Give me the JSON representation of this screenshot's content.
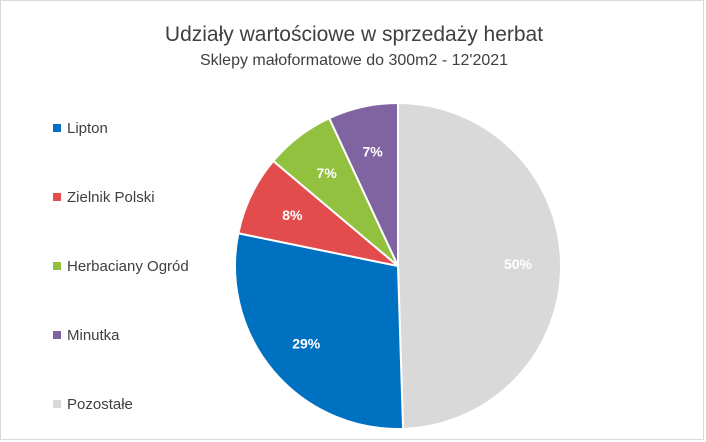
{
  "chart_data": {
    "type": "pie",
    "title": "Udziały wartościowe w sprzedaży herbat",
    "subtitle": "Sklepy małoformatowe do 300m2 - 12'2021",
    "legend_position": "left",
    "start_angle_deg": 0,
    "direction": "clockwise",
    "slices": [
      {
        "label": "Pozostałe",
        "value": 50,
        "data_label": "50%",
        "color": "#d9d9d9",
        "label_color": "#ffffff"
      },
      {
        "label": "Lipton",
        "value": 29,
        "data_label": "29%",
        "color": "#0070c0",
        "label_color": "#ffffff"
      },
      {
        "label": "Zielnik Polski",
        "value": 8,
        "data_label": "8%",
        "color": "#e24c4c",
        "label_color": "#ffffff"
      },
      {
        "label": "Herbaciany Ogród",
        "value": 7,
        "data_label": "7%",
        "color": "#92c03f",
        "label_color": "#ffffff"
      },
      {
        "label": "Minutka",
        "value": 7,
        "data_label": "7%",
        "color": "#8064a2",
        "label_color": "#ffffff"
      }
    ],
    "legend_order": [
      "Lipton",
      "Zielnik Polski",
      "Herbaciany Ogród",
      "Minutka",
      "Pozostałe"
    ]
  }
}
